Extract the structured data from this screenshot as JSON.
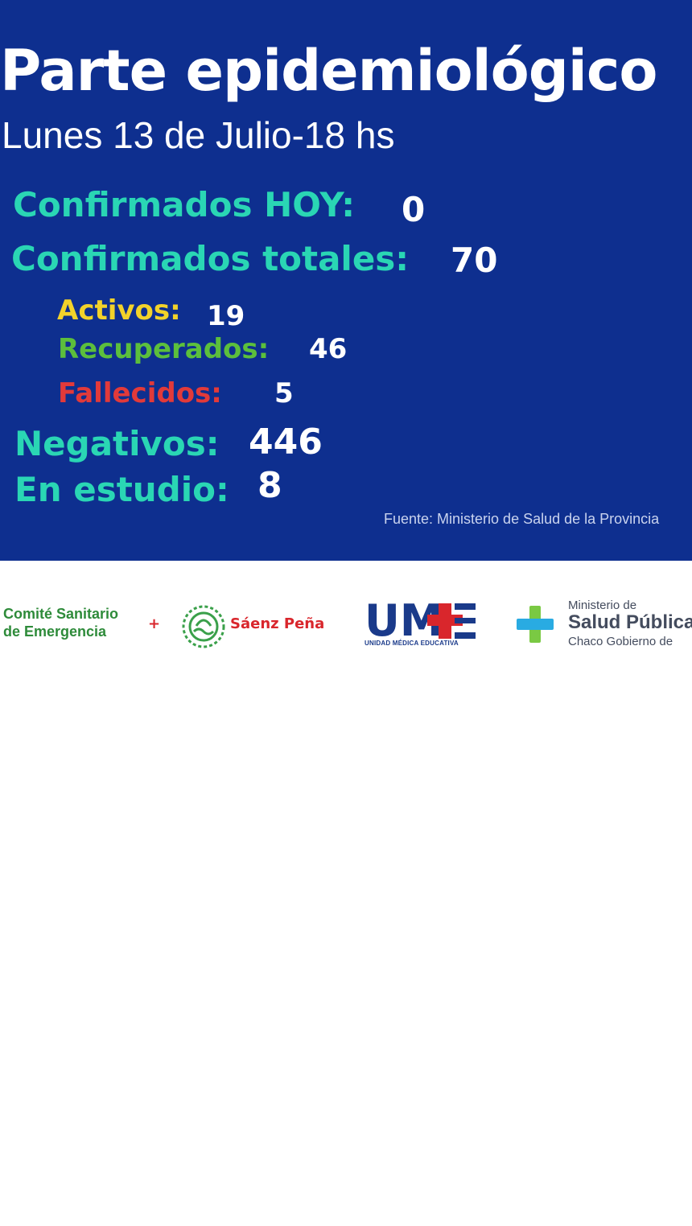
{
  "header": {
    "title": "Parte epidemiológico",
    "subtitle": "Lunes 13 de Julio-18 hs"
  },
  "stats": {
    "confirmados_hoy": {
      "label": "Confirmados HOY:",
      "value": "0"
    },
    "confirmados_totales": {
      "label": "Confirmados totales:",
      "value": "70"
    },
    "activos": {
      "label": "Activos:",
      "value": "19"
    },
    "recuperados": {
      "label": "Recuperados:",
      "value": "46"
    },
    "fallecidos": {
      "label": "Fallecidos:",
      "value": "5"
    },
    "negativos": {
      "label": "Negativos:",
      "value": "446"
    },
    "en_estudio": {
      "label": "En estudio:",
      "value": "8"
    }
  },
  "source": "Fuente: Ministerio de Salud de la Provincia",
  "footer": {
    "comite": {
      "line1": "Comité Sanitario",
      "line2": "de Emergencia",
      "mark": "+"
    },
    "saenz_pena": "Sáenz Peña",
    "ume": {
      "logo_text": "UM",
      "caption": "UNIDAD MÉDICA EDUCATIVA"
    },
    "ministerio": {
      "line1": "Ministerio de",
      "line2": "Salud Pública",
      "line3": "Chaco Gobierno de"
    }
  },
  "colors": {
    "background": "#0e2f8f",
    "teal": "#2ad6b4",
    "yellow": "#f2d22a",
    "green": "#5cbf3c",
    "red": "#e23a3a"
  },
  "icons": [
    "saenz-pena-emblem-icon",
    "ume-cross-icon",
    "health-cross-icon"
  ]
}
